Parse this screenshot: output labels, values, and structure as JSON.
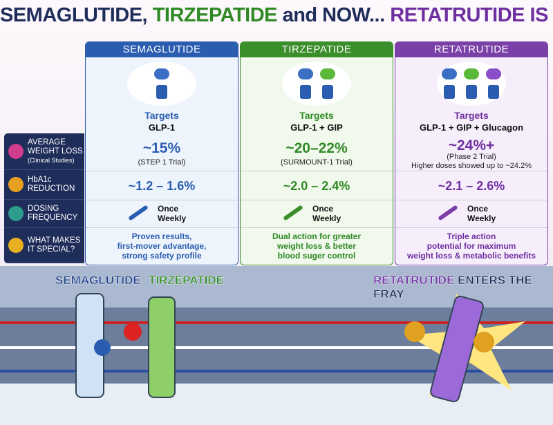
{
  "title": {
    "part1": "SEMAGLUTIDE,",
    "part2": "TIRZEPATIDE",
    "part3": "and NOW...",
    "part4": "RETATRUTIDE IS COMING!"
  },
  "row_labels": {
    "weight_loss": "AVERAGE WEIGHT LOSS",
    "weight_loss_note": "(Clinical Studies)",
    "hba1c": "HbA1c REDUCTION",
    "dosing": "DOSING FREQUENCY",
    "special": "WHAT MAKES IT SPECIAL?"
  },
  "columns": [
    {
      "name": "SEMAGLUTIDE",
      "targets_label": "Targets",
      "targets": "GLP-1",
      "weight_loss": "~15%",
      "weight_loss_note": "(STEP 1 Trial)",
      "hba1c": "~1.2 – 1.6%",
      "dosing": [
        "Once",
        "Weekly"
      ],
      "special": [
        "Proven results,",
        "first-mover advantage,",
        "strong safety profile"
      ]
    },
    {
      "name": "TIRZEPATIDE",
      "targets_label": "Targets",
      "targets": "GLP-1 + GIP",
      "weight_loss": "~20–22%",
      "weight_loss_note": "(SURMOUNT-1 Trial)",
      "hba1c": "~2.0 – 2.4%",
      "dosing": [
        "Once",
        "Weekly"
      ],
      "special": [
        "Dual action for greater",
        "weight loss & better",
        "blood suger control"
      ]
    },
    {
      "name": "RETATRUTIDE",
      "targets_label": "Targets",
      "targets": "GLP-1 + GIP + Glucagon",
      "weight_loss": "~24%+",
      "weight_loss_note": "(Phase 2 Trial)",
      "weight_loss_extra": "Higher doses showed up to ~24.2%",
      "hba1c": "~2.1 – 2.6%",
      "dosing": [
        "Once",
        "Weekly"
      ],
      "special": [
        "Triple action",
        "potential for maximum",
        "weight loss & metabolic benefits"
      ]
    }
  ],
  "scene": {
    "left1": "SEMAGLUTIDE",
    "left2": "TIRZEPATIDE",
    "right1": "RETATRUTIDE",
    "right2": "ENTERS THE FRAY"
  }
}
